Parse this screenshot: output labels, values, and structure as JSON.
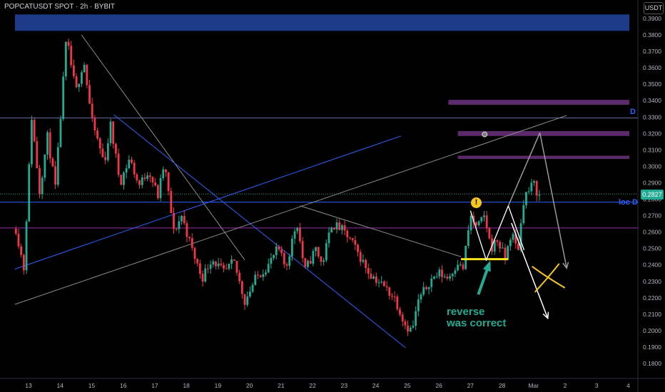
{
  "header": {
    "symbol_line": "POPCATUSDT SPOT · 2h · BYBIT",
    "currency_button": "USDT"
  },
  "annotations": {
    "reverse_line1": "reverse",
    "reverse_line2": "was correct",
    "alert_mark": "!",
    "label_d": "D",
    "label_loc_d": "loc D"
  },
  "chart_data": {
    "type": "candlestick",
    "timeframe": "2h",
    "x_tick_labels": [
      "13",
      "14",
      "15",
      "16",
      "17",
      "18",
      "19",
      "20",
      "21",
      "22",
      "23",
      "24",
      "25",
      "26",
      "27",
      "28",
      "Mar",
      "2",
      "3",
      "4"
    ],
    "y_tick_labels": [
      "0.3900",
      "0.3800",
      "0.3700",
      "0.3600",
      "0.3500",
      "0.3400",
      "0.3300",
      "0.3200",
      "0.3100",
      "0.3000",
      "0.2900",
      "0.2800",
      "0.2700",
      "0.2600",
      "0.2500",
      "0.2400",
      "0.2300",
      "0.2200",
      "0.2100",
      "0.2000",
      "0.1900",
      "0.1800"
    ],
    "ylim": [
      0.174,
      0.399
    ],
    "xlim_days": [
      12.57,
      32.05
    ],
    "last_price": "0.2827",
    "colors": {
      "up": "#22ab94",
      "down": "#f23645"
    },
    "price_path": [
      [
        12.6,
        0.262
      ],
      [
        12.85,
        0.238
      ],
      [
        13.1,
        0.33
      ],
      [
        13.35,
        0.285
      ],
      [
        13.6,
        0.318
      ],
      [
        13.85,
        0.287
      ],
      [
        14.2,
        0.378
      ],
      [
        14.5,
        0.345
      ],
      [
        14.75,
        0.365
      ],
      [
        15.0,
        0.328
      ],
      [
        15.4,
        0.302
      ],
      [
        15.6,
        0.325
      ],
      [
        15.9,
        0.29
      ],
      [
        16.2,
        0.305
      ],
      [
        16.5,
        0.288
      ],
      [
        16.8,
        0.298
      ],
      [
        17.1,
        0.282
      ],
      [
        17.3,
        0.302
      ],
      [
        17.6,
        0.26
      ],
      [
        17.85,
        0.27
      ],
      [
        18.2,
        0.248
      ],
      [
        18.5,
        0.232
      ],
      [
        18.8,
        0.244
      ],
      [
        19.2,
        0.235
      ],
      [
        19.5,
        0.242
      ],
      [
        19.85,
        0.218
      ],
      [
        20.2,
        0.232
      ],
      [
        20.6,
        0.24
      ],
      [
        20.9,
        0.25
      ],
      [
        21.15,
        0.238
      ],
      [
        21.5,
        0.267
      ],
      [
        21.75,
        0.236
      ],
      [
        22.1,
        0.25
      ],
      [
        22.3,
        0.24
      ],
      [
        22.6,
        0.265
      ],
      [
        22.9,
        0.262
      ],
      [
        23.2,
        0.255
      ],
      [
        23.5,
        0.245
      ],
      [
        23.8,
        0.235
      ],
      [
        24.2,
        0.228
      ],
      [
        24.6,
        0.22
      ],
      [
        24.95,
        0.203
      ],
      [
        25.15,
        0.2
      ],
      [
        25.35,
        0.218
      ],
      [
        25.7,
        0.23
      ],
      [
        26.0,
        0.235
      ],
      [
        26.3,
        0.232
      ],
      [
        26.6,
        0.242
      ],
      [
        26.75,
        0.236
      ],
      [
        27.0,
        0.27
      ],
      [
        27.2,
        0.262
      ],
      [
        27.45,
        0.27
      ],
      [
        27.65,
        0.25
      ],
      [
        27.85,
        0.255
      ],
      [
        28.1,
        0.244
      ],
      [
        28.3,
        0.26
      ],
      [
        28.5,
        0.248
      ],
      [
        28.7,
        0.282
      ],
      [
        28.85,
        0.285
      ],
      [
        29.0,
        0.29
      ],
      [
        29.15,
        0.282
      ]
    ],
    "horizontal_lines": [
      {
        "price": 0.3295,
        "label": "D",
        "color": "#5d6c9c"
      },
      {
        "price": 0.2782,
        "label": "loc D",
        "color": "#2962ff"
      },
      {
        "price": 0.2832,
        "label": "",
        "color": "#22ab94",
        "style": "dotted"
      },
      {
        "price": 0.2625,
        "label": "",
        "color": "#9c27b0"
      }
    ],
    "zones": [
      {
        "x1": 12.57,
        "x2": 32.5,
        "y1": 0.3925,
        "y2": 0.3825,
        "color": "#1e3b8a"
      },
      {
        "x1": 26.3,
        "x2": 32.05,
        "y1": 0.3405,
        "y2": 0.3375,
        "color": "#5a2a6b"
      },
      {
        "x1": 26.6,
        "x2": 32.05,
        "y1": 0.3215,
        "y2": 0.3185,
        "color": "#5a2a6b"
      },
      {
        "x1": 26.6,
        "x2": 32.05,
        "y1": 0.3065,
        "y2": 0.3045,
        "color": "#5a2a6b"
      }
    ],
    "trend_lines": [
      {
        "x1": 14.68,
        "y1": 0.38,
        "x2": 19.85,
        "y2": 0.243,
        "color": "#8c8c8c"
      },
      {
        "x1": 15.7,
        "y1": 0.3315,
        "x2": 24.95,
        "y2": 0.1895,
        "color": "#2962ff"
      },
      {
        "x1": 12.57,
        "y1": 0.2375,
        "x2": 24.8,
        "y2": 0.3185,
        "color": "#2962ff"
      },
      {
        "x1": 12.57,
        "y1": 0.216,
        "x2": 30.05,
        "y2": 0.331,
        "color": "#8c8c8c"
      },
      {
        "x1": 21.6,
        "y1": 0.276,
        "x2": 26.7,
        "y2": 0.245,
        "color": "#8c8c8c"
      }
    ],
    "pattern_white": [
      [
        27.0,
        0.273
      ],
      [
        27.5,
        0.243
      ],
      [
        28.2,
        0.276
      ],
      [
        28.7,
        0.249
      ]
    ],
    "support_line": {
      "x1": 26.7,
      "x2": 28.2,
      "price": 0.2435,
      "color": "#f6e11a"
    },
    "projection_gray": [
      [
        29.2,
        0.3205
      ],
      [
        30.05,
        0.238
      ]
    ],
    "projection_white": [
      [
        28.3,
        0.2655
      ],
      [
        29.45,
        0.2075
      ]
    ],
    "cross_mark": {
      "x": 29.45,
      "y": 0.233,
      "color": "#f6c61a"
    },
    "green_arrow": {
      "from": [
        27.25,
        0.222
      ],
      "to": [
        27.6,
        0.241
      ],
      "color": "#22ab94"
    },
    "pivot_marker": {
      "x": 27.45,
      "y": 0.3195
    }
  }
}
